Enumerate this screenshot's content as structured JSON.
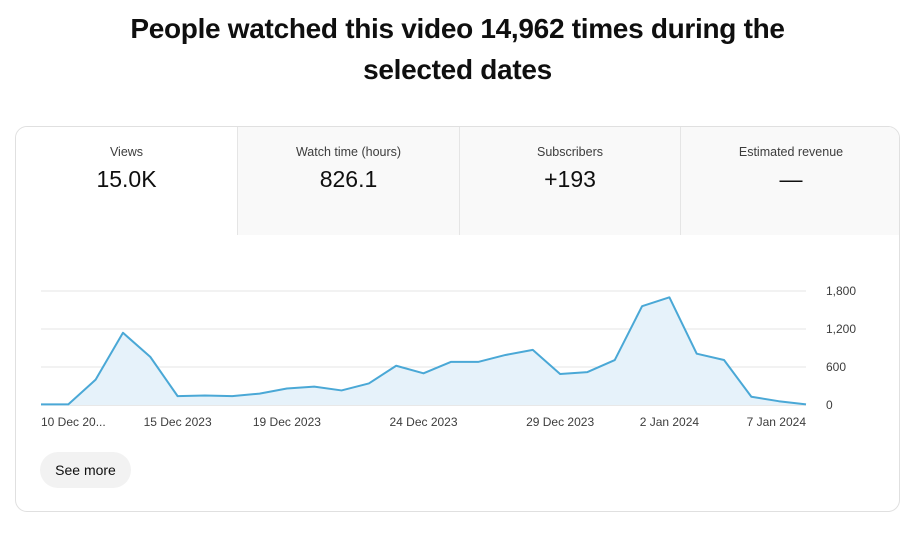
{
  "headline": "People watched this video 14,962 times during the selected dates",
  "tabs": [
    {
      "label": "Views",
      "value": "15.0K",
      "active": true
    },
    {
      "label": "Watch time (hours)",
      "value": "826.1",
      "active": false
    },
    {
      "label": "Subscribers",
      "value": "+193",
      "active": false
    },
    {
      "label": "Estimated revenue",
      "value": "—",
      "active": false
    }
  ],
  "see_more_label": "See more",
  "colors": {
    "line": "#4aa8d6",
    "fill": "#e6f2fa",
    "grid": "#e5e5e5",
    "axis": "#d0d0d0"
  },
  "chart_data": {
    "type": "area",
    "title": "",
    "xlabel": "",
    "ylabel": "",
    "x": [
      "2023-12-10",
      "2023-12-11",
      "2023-12-12",
      "2023-12-13",
      "2023-12-14",
      "2023-12-15",
      "2023-12-16",
      "2023-12-17",
      "2023-12-18",
      "2023-12-19",
      "2023-12-20",
      "2023-12-21",
      "2023-12-22",
      "2023-12-23",
      "2023-12-24",
      "2023-12-25",
      "2023-12-26",
      "2023-12-27",
      "2023-12-28",
      "2023-12-29",
      "2023-12-30",
      "2023-12-31",
      "2024-01-01",
      "2024-01-02",
      "2024-01-03",
      "2024-01-04",
      "2024-01-05",
      "2024-01-06",
      "2024-01-07"
    ],
    "series": [
      {
        "values": [
          10,
          10,
          400,
          1140,
          760,
          140,
          150,
          140,
          180,
          260,
          290,
          230,
          340,
          620,
          500,
          680,
          680,
          790,
          870,
          490,
          520,
          710,
          1560,
          1700,
          810,
          710,
          130,
          60,
          10
        ]
      }
    ],
    "xticks": [
      {
        "index": 0,
        "label": "10 Dec 20..."
      },
      {
        "index": 5,
        "label": "15 Dec 2023"
      },
      {
        "index": 9,
        "label": "19 Dec 2023"
      },
      {
        "index": 14,
        "label": "24 Dec 2023"
      },
      {
        "index": 19,
        "label": "29 Dec 2023"
      },
      {
        "index": 23,
        "label": "2 Jan 2024"
      },
      {
        "index": 28,
        "label": "7 Jan 2024"
      }
    ],
    "yticks": [
      {
        "value": 0,
        "label": "0"
      },
      {
        "value": 600,
        "label": "600"
      },
      {
        "value": 1200,
        "label": "1,200"
      },
      {
        "value": 1800,
        "label": "1,800"
      }
    ],
    "ylim": [
      0,
      1800
    ],
    "grid": true
  }
}
